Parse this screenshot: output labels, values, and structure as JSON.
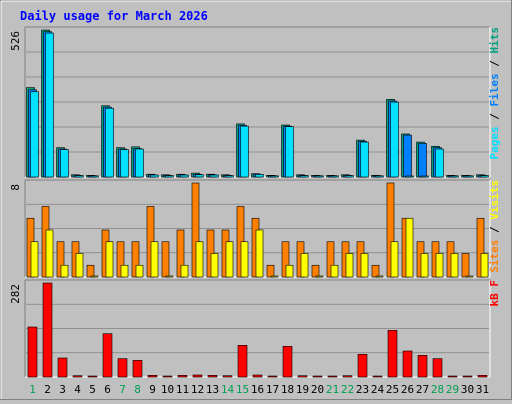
{
  "chart_data": {
    "type": "bar",
    "title": "Daily usage for March 2026",
    "categories": [
      "1",
      "2",
      "3",
      "4",
      "5",
      "6",
      "7",
      "8",
      "9",
      "10",
      "11",
      "12",
      "13",
      "14",
      "15",
      "16",
      "17",
      "18",
      "19",
      "20",
      "21",
      "22",
      "23",
      "24",
      "25",
      "26",
      "27",
      "28",
      "29",
      "30",
      "31"
    ],
    "weekend_days": [
      "1",
      "7",
      "8",
      "14",
      "15",
      "21",
      "22",
      "28",
      "29"
    ],
    "panels": [
      {
        "id": "hits",
        "ymax_label": "526",
        "ymax": 526,
        "right_label": [
          "Pages",
          "Files",
          "Hits"
        ],
        "right_colors": [
          "#00e0ff",
          "#0080ff",
          "#00a080"
        ],
        "series": [
          {
            "name": "Hits",
            "color": "#00a080",
            "values": [
              320,
              526,
              105,
              8,
              6,
              255,
              105,
              108,
              10,
              8,
              10,
              14,
              10,
              8,
              190,
              12,
              6,
              186,
              8,
              6,
              6,
              8,
              132,
              6,
              278,
              154,
              125,
              110,
              6,
              6,
              8
            ]
          },
          {
            "name": "Files",
            "color": "#0080ff",
            "values": [
              312,
              520,
              100,
              6,
              5,
              250,
              100,
              102,
              8,
              6,
              8,
              10,
              8,
              6,
              185,
              10,
              5,
              182,
              6,
              5,
              5,
              6,
              128,
              5,
              272,
              150,
              120,
              105,
              5,
              5,
              6
            ]
          },
          {
            "name": "Pages",
            "color": "#00e0ff",
            "values": [
              305,
              515,
              98,
              5,
              4,
              246,
              98,
              100,
              7,
              5,
              7,
              8,
              7,
              5,
              182,
              9,
              4,
              180,
              5,
              4,
              4,
              5,
              125,
              4,
              268,
              0,
              0,
              100,
              4,
              4,
              5
            ]
          }
        ]
      },
      {
        "id": "visits",
        "ymax_label": "8",
        "ymax": 8,
        "right_label": [
          "Sites",
          "Visits"
        ],
        "right_colors": [
          "#ff8000",
          "#ffff00"
        ],
        "series": [
          {
            "name": "Visits",
            "color": "#ff8000",
            "values": [
              5,
              6,
              3,
              3,
              1,
              4,
              3,
              3,
              6,
              3,
              4,
              8,
              4,
              4,
              6,
              5,
              1,
              3,
              3,
              1,
              3,
              3,
              3,
              1,
              8,
              5,
              3,
              3,
              3,
              2,
              5
            ]
          },
          {
            "name": "Sites",
            "color": "#ffff00",
            "values": [
              3,
              4,
              1,
              2,
              0,
              3,
              1,
              1,
              3,
              0,
              1,
              3,
              2,
              3,
              3,
              4,
              0,
              1,
              2,
              0,
              1,
              2,
              2,
              0,
              3,
              5,
              2,
              2,
              2,
              0,
              2
            ]
          }
        ]
      },
      {
        "id": "kb",
        "ymax_label": "282",
        "ymax": 282,
        "right_label": [
          "kB F"
        ],
        "right_colors": [
          "#ff0000"
        ],
        "series": [
          {
            "name": "kB F",
            "color": "#ff0000",
            "values": [
              150,
              282,
              57,
              4,
              3,
              130,
              55,
              50,
              5,
              3,
              5,
              6,
              5,
              4,
              95,
              6,
              3,
              92,
              4,
              3,
              3,
              4,
              68,
              3,
              140,
              78,
              65,
              55,
              3,
              3,
              5
            ]
          }
        ]
      }
    ]
  }
}
